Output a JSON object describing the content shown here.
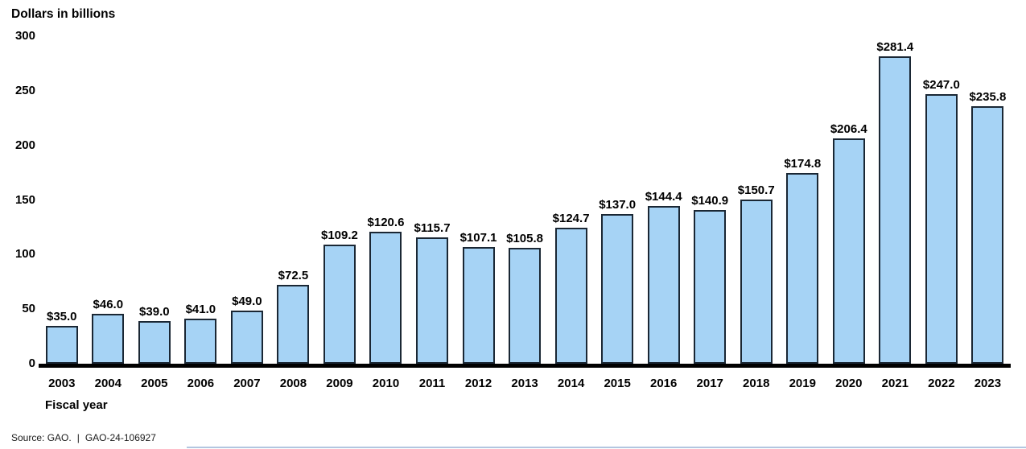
{
  "chart_data": {
    "type": "bar",
    "title": "Dollars in billions",
    "xlabel": "Fiscal year",
    "categories": [
      "2003",
      "2004",
      "2005",
      "2006",
      "2007",
      "2008",
      "2009",
      "2010",
      "2011",
      "2012",
      "2013",
      "2014",
      "2015",
      "2016",
      "2017",
      "2018",
      "2019",
      "2020",
      "2021",
      "2022",
      "2023"
    ],
    "values": [
      35.0,
      46.0,
      39.0,
      41.0,
      49.0,
      72.5,
      109.2,
      120.6,
      115.7,
      107.1,
      105.8,
      124.7,
      137.0,
      144.4,
      140.9,
      150.7,
      174.8,
      206.4,
      281.4,
      247.0,
      235.8
    ],
    "labels": [
      "$35.0",
      "$46.0",
      "$39.0",
      "$41.0",
      "$49.0",
      "$72.5",
      "$109.2",
      "$120.6",
      "$115.7",
      "$107.1",
      "$105.8",
      "$124.7",
      "$137.0",
      "$144.4",
      "$140.9",
      "$150.7",
      "$174.8",
      "$206.4",
      "$281.4",
      "$247.0",
      "$235.8"
    ],
    "ylim": [
      0,
      300
    ],
    "yticks": [
      0,
      50,
      100,
      150,
      200,
      250,
      300
    ],
    "grid": false,
    "legend": "none"
  },
  "footer": {
    "source_text": "Source: GAO.",
    "separator": "|",
    "report_number": "GAO-24-106927"
  },
  "colors": {
    "bar_fill": "#a6d3f5",
    "bar_border": "#1a2734",
    "axis_line": "#000000",
    "bottom_line": "#b3c6e0"
  }
}
